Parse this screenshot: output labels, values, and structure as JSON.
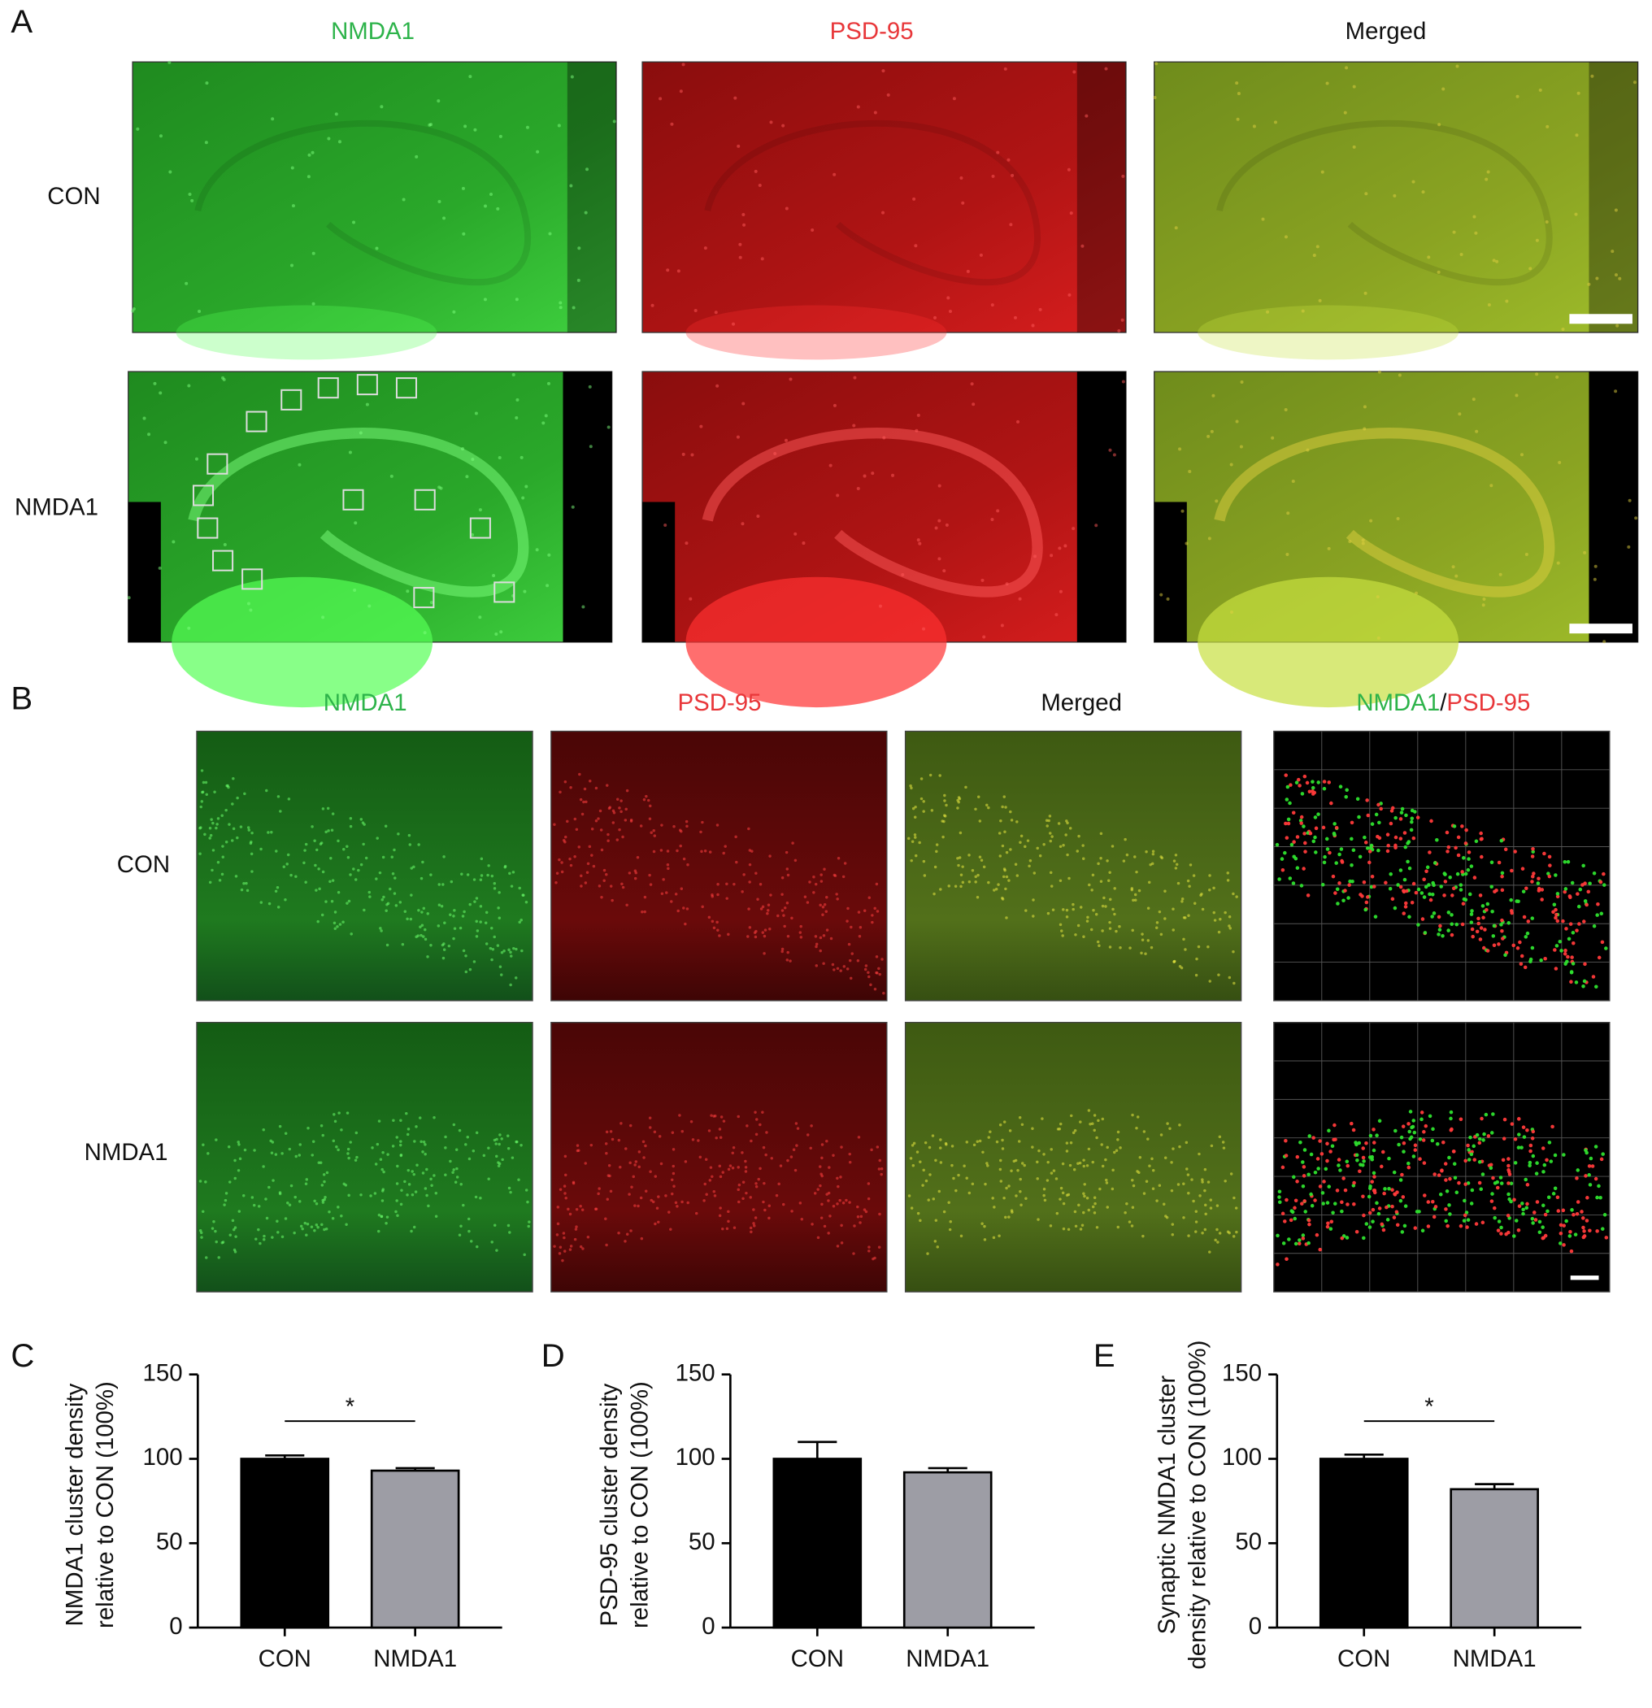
{
  "figure": {
    "panel_labels": [
      "A",
      "B"
    ],
    "a": {
      "columns": [
        "NMDA1",
        "PSD-95",
        "Merged"
      ],
      "rows": [
        "CON",
        "NMDA1"
      ]
    },
    "b": {
      "columns": [
        "NMDA1",
        "PSD-95",
        "Merged"
      ],
      "overlay": [
        "NMDA1",
        "/",
        "PSD-95"
      ],
      "rows": [
        "CON",
        "NMDA1"
      ]
    }
  },
  "chart_data": [
    {
      "type": "bar",
      "panel": "C",
      "categories": [
        "CON",
        "NMDA1"
      ],
      "values": [
        100,
        93
      ],
      "errors": [
        2,
        1.5
      ],
      "colors": [
        "#000000",
        "#9d9da5"
      ],
      "ylim": [
        0,
        150
      ],
      "yticks": [
        0,
        50,
        100,
        150
      ],
      "ylabel": [
        "NMDA1 cluster density",
        "relative to CON (100%)"
      ],
      "significance": "*"
    },
    {
      "type": "bar",
      "panel": "D",
      "categories": [
        "CON",
        "NMDA1"
      ],
      "values": [
        100,
        92
      ],
      "errors": [
        10,
        2.5
      ],
      "colors": [
        "#000000",
        "#9d9da5"
      ],
      "ylim": [
        0,
        150
      ],
      "yticks": [
        0,
        50,
        100,
        150
      ],
      "ylabel": [
        "PSD-95 cluster density",
        "relative to CON (100%)"
      ]
    },
    {
      "type": "bar",
      "panel": "E",
      "categories": [
        "CON",
        "NMDA1"
      ],
      "values": [
        100,
        82
      ],
      "errors": [
        2.5,
        3
      ],
      "colors": [
        "#000000",
        "#9d9da5"
      ],
      "ylim": [
        0,
        150
      ],
      "yticks": [
        0,
        50,
        100,
        150
      ],
      "ylabel": [
        "Synaptic NMDA1 cluster",
        "density relative to CON (100%)"
      ],
      "significance": "*"
    }
  ]
}
